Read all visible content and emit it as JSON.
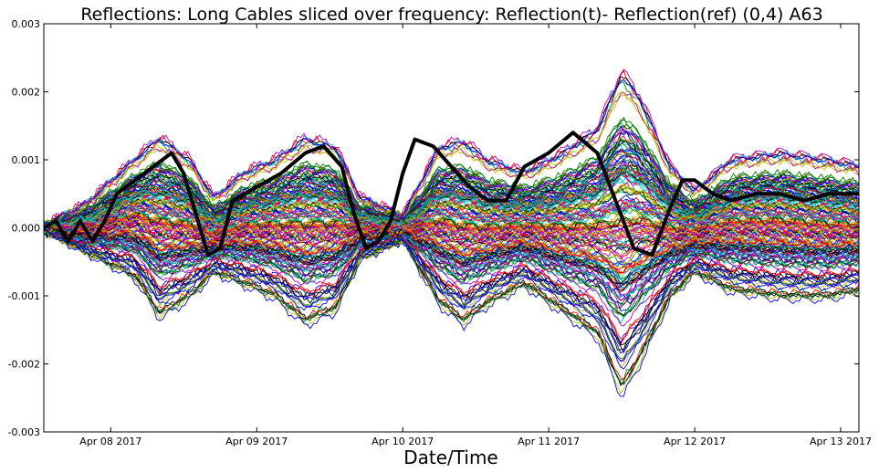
{
  "chart_data": {
    "type": "line",
    "title": "Reflections: Long Cables sliced over frequency: Reflection(t)- Reflection(ref) (0,4) A63",
    "xlabel": "Date/Time",
    "ylabel": "",
    "xlim": [
      "2017-04-07 13:00",
      "2017-04-13 03:00"
    ],
    "ylim": [
      -0.003,
      0.003
    ],
    "grid": false,
    "legend": "none",
    "x_ticks": [
      "Apr 08 2017",
      "Apr 09 2017",
      "Apr 10 2017",
      "Apr 11 2017",
      "Apr 12 2017",
      "Apr 13 2017"
    ],
    "y_ticks": [
      "0.003",
      "0.002",
      "0.001",
      "0.000",
      "-0.001",
      "-0.002",
      "-0.003"
    ],
    "series_note": "Several hundred thin colored traces (one per frequency slice) plus one thick black highlighted trace",
    "series_colors": [
      "#0000ff",
      "#008000",
      "#ff0000",
      "#00bfbf",
      "#bf00bf",
      "#bfbf00",
      "#000000"
    ],
    "envelope": {
      "x": [
        "2017-04-07 13:00",
        "2017-04-07 20:00",
        "2017-04-08 04:00",
        "2017-04-08 08:00",
        "2017-04-08 13:00",
        "2017-04-08 17:00",
        "2017-04-08 22:00",
        "2017-04-09 03:00",
        "2017-04-09 08:00",
        "2017-04-09 13:00",
        "2017-04-09 17:00",
        "2017-04-10 00:00",
        "2017-04-10 06:00",
        "2017-04-10 10:00",
        "2017-04-10 14:00",
        "2017-04-10 20:00",
        "2017-04-11 02:00",
        "2017-04-11 08:00",
        "2017-04-11 12:00",
        "2017-04-11 15:00",
        "2017-04-11 20:00",
        "2017-04-12 00:00",
        "2017-04-12 06:00",
        "2017-04-12 14:00",
        "2017-04-12 22:00",
        "2017-04-13 03:00"
      ],
      "upper": [
        5e-05,
        0.0004,
        0.0011,
        0.00145,
        0.0011,
        0.0005,
        0.0009,
        0.0011,
        0.00145,
        0.0013,
        0.0005,
        0.0002,
        0.0013,
        0.0014,
        0.0011,
        0.0009,
        0.0012,
        0.0016,
        0.0025,
        0.0021,
        0.001,
        0.0006,
        0.0011,
        0.0012,
        0.0011,
        0.001
      ],
      "lower": [
        -5e-05,
        -0.0004,
        -0.0008,
        -0.0014,
        -0.0011,
        -0.0007,
        -0.0009,
        -0.0011,
        -0.0015,
        -0.0013,
        -0.0005,
        -0.0002,
        -0.0012,
        -0.0015,
        -0.0012,
        -0.0009,
        -0.0013,
        -0.0017,
        -0.0026,
        -0.0021,
        -0.0011,
        -0.0007,
        -0.001,
        -0.0011,
        -0.0011,
        -0.001
      ]
    },
    "highlight": {
      "name": "",
      "color": "#000000",
      "x": [
        "2017-04-07 13:00",
        "2017-04-07 15:00",
        "2017-04-07 17:00",
        "2017-04-07 19:00",
        "2017-04-07 21:00",
        "2017-04-07 23:00",
        "2017-04-08 01:00",
        "2017-04-08 04:00",
        "2017-04-08 07:00",
        "2017-04-08 10:00",
        "2017-04-08 12:00",
        "2017-04-08 14:00",
        "2017-04-08 16:00",
        "2017-04-08 18:00",
        "2017-04-08 20:00",
        "2017-04-08 22:00",
        "2017-04-09 00:00",
        "2017-04-09 04:00",
        "2017-04-09 08:00",
        "2017-04-09 11:00",
        "2017-04-09 14:00",
        "2017-04-09 16:00",
        "2017-04-09 18:00",
        "2017-04-09 20:00",
        "2017-04-09 22:00",
        "2017-04-10 00:00",
        "2017-04-10 02:00",
        "2017-04-10 05:00",
        "2017-04-10 08:00",
        "2017-04-10 11:00",
        "2017-04-10 14:00",
        "2017-04-10 17:00",
        "2017-04-10 20:00",
        "2017-04-11 00:00",
        "2017-04-11 04:00",
        "2017-04-11 08:00",
        "2017-04-11 11:00",
        "2017-04-11 14:00",
        "2017-04-11 17:00",
        "2017-04-11 20:00",
        "2017-04-11 22:00",
        "2017-04-12 00:00",
        "2017-04-12 03:00",
        "2017-04-12 06:00",
        "2017-04-12 10:00",
        "2017-04-12 14:00",
        "2017-04-12 18:00",
        "2017-04-12 22:00",
        "2017-04-13 03:00"
      ],
      "y": [
        0.0,
        0.0001,
        -0.0002,
        0.0001,
        -0.0002,
        0.0001,
        0.0005,
        0.0007,
        0.0009,
        0.0011,
        0.0008,
        0.0002,
        -0.0004,
        -0.0003,
        0.0004,
        0.0005,
        0.0006,
        0.0008,
        0.0011,
        0.0012,
        0.0009,
        0.0002,
        -0.0003,
        -0.0002,
        0.0001,
        0.0008,
        0.0013,
        0.0012,
        0.0009,
        0.0006,
        0.0004,
        0.0004,
        0.0009,
        0.0011,
        0.0014,
        0.0011,
        0.0004,
        -0.0003,
        -0.0004,
        0.0003,
        0.0007,
        0.0007,
        0.0005,
        0.0004,
        0.0005,
        0.0005,
        0.0004,
        0.0005,
        0.0005
      ]
    }
  }
}
